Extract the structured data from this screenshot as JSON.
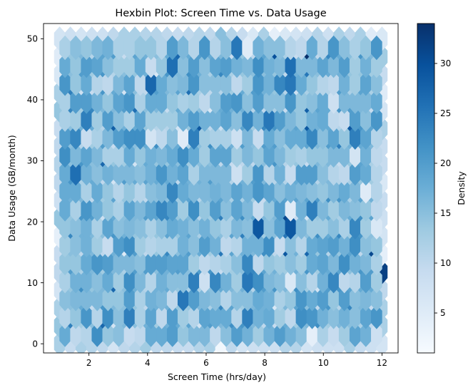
{
  "chart_data": {
    "type": "heatmap",
    "subtype": "hexbin",
    "title": "Hexbin Plot: Screen Time vs. Data Usage",
    "xlabel": "Screen Time (hrs/day)",
    "ylabel": "Data Usage (GB/month)",
    "xlim": [
      0.45,
      12.55
    ],
    "ylim": [
      -1.5,
      52.5
    ],
    "x_ticks": [
      2,
      4,
      6,
      8,
      10,
      12
    ],
    "y_ticks": [
      0,
      10,
      20,
      30,
      40,
      50
    ],
    "grid": false,
    "colormap": "Blues",
    "colorbar": {
      "label": "Density",
      "range": [
        1,
        34
      ],
      "ticks": [
        5,
        10,
        15,
        20,
        25,
        30
      ],
      "position": "right"
    },
    "hexbin": {
      "gridsize": 30,
      "x_extent": [
        1,
        12
      ],
      "y_extent": [
        0,
        50
      ],
      "seed": 42,
      "median_density": 16,
      "notable_bins": [
        {
          "x": 9.4,
          "y": 48.4,
          "count": 34
        },
        {
          "x": 11.9,
          "y": 11.3,
          "count": 32
        },
        {
          "x": 11.5,
          "y": 14.5,
          "count": 31
        },
        {
          "x": 8.7,
          "y": 21.8,
          "count": 31
        },
        {
          "x": 8.5,
          "y": 48.4,
          "count": 30
        },
        {
          "x": 9.6,
          "y": 35.5,
          "count": 29
        },
        {
          "x": 5.9,
          "y": 34.7,
          "count": 29
        },
        {
          "x": 8.7,
          "y": 16.1,
          "count": 29
        },
        {
          "x": 9.6,
          "y": 39.6,
          "count": 28
        },
        {
          "x": 4.9,
          "y": 48.4,
          "count": 27
        },
        {
          "x": 2.4,
          "y": 29.8,
          "count": 27
        },
        {
          "x": 2.4,
          "y": 2.4,
          "count": 27
        },
        {
          "x": 3.0,
          "y": 8.1,
          "count": 27
        }
      ]
    },
    "colors": {
      "low": "#f7fbff",
      "high": "#08306b"
    }
  }
}
